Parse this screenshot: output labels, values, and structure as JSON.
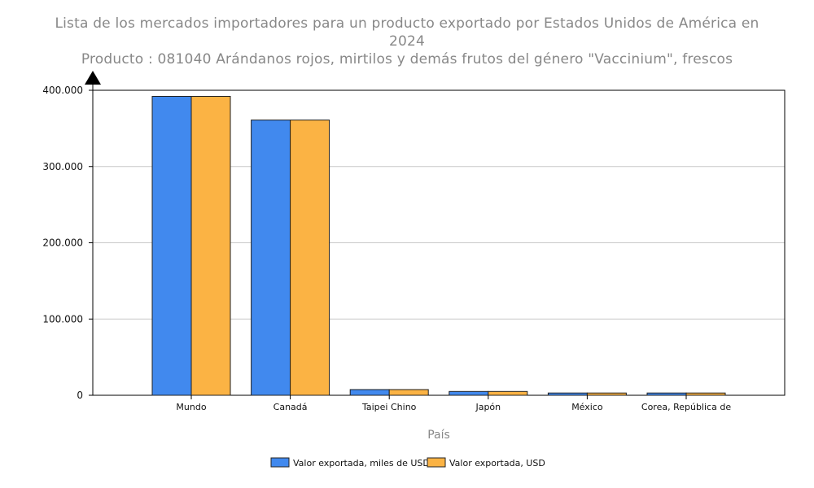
{
  "chart_data": {
    "type": "bar",
    "title": "Lista de los mercados importadores para un producto exportado por Estados Unidos de América en 2024",
    "subtitle": "Producto : 081040 Arándanos rojos, mirtilos y demás frutos del género \"Vaccinium\", frescos",
    "xlabel": "País",
    "ylabel": "",
    "ylim": [
      0,
      400000
    ],
    "yticks": [
      0,
      100000,
      200000,
      300000,
      400000
    ],
    "ytick_labels": [
      "0",
      "100.000",
      "200.000",
      "300.000",
      "400.000"
    ],
    "grid": true,
    "legend_position": "bottom",
    "categories": [
      "Mundo",
      "Canadá",
      "Taipei Chino",
      "Japón",
      "México",
      "Corea, República de"
    ],
    "series": [
      {
        "name": "Valor exportada, miles de USD",
        "color": "#4189ee",
        "values": [
          392000,
          361000,
          7500,
          5000,
          3000,
          3000
        ]
      },
      {
        "name": "Valor exportada, USD",
        "color": "#fbb344",
        "values": [
          392000,
          361000,
          7500,
          5000,
          3000,
          3000
        ]
      }
    ]
  }
}
